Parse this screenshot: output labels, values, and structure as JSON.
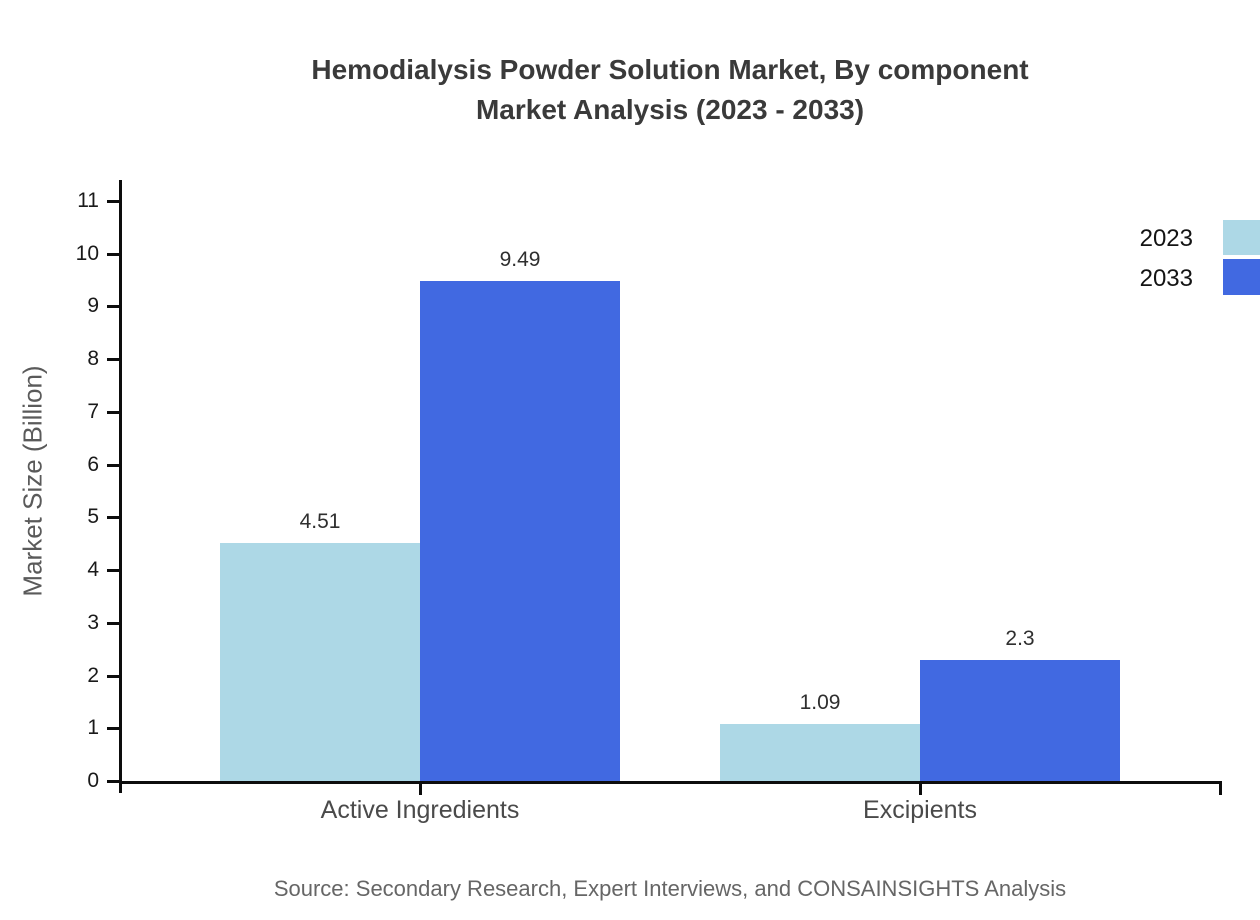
{
  "title": {
    "line1": "Hemodialysis Powder Solution Market, By component",
    "line2": "Market Analysis (2023 - 2033)"
  },
  "source_text": "Source: Secondary Research, Expert Interviews, and CONSAINSIGHTS Analysis",
  "colors": {
    "series_2023": "#ADD8E6",
    "series_2033": "#4169E1",
    "axis": "#0d0d0d",
    "title_text": "#3a3a3a",
    "source_text": "#666666"
  },
  "legend": {
    "items": [
      {
        "label": "2023",
        "color": "#ADD8E6"
      },
      {
        "label": "2033",
        "color": "#4169E1"
      }
    ]
  },
  "chart_data": {
    "type": "bar",
    "categories": [
      "Active Ingredients",
      "Excipients"
    ],
    "series": [
      {
        "name": "2023",
        "color": "#ADD8E6",
        "values": [
          4.51,
          1.09
        ],
        "labels": [
          "4.51",
          "1.09"
        ]
      },
      {
        "name": "2033",
        "color": "#4169E1",
        "values": [
          9.49,
          2.3
        ],
        "labels": [
          "9.49",
          "2.3"
        ]
      }
    ],
    "title": "Hemodialysis Powder Solution Market, By component Market Analysis (2023 - 2033)",
    "xlabel": "",
    "ylabel": "Market Size (Billion)",
    "ylim": [
      0,
      11
    ],
    "yticks": [
      0,
      1,
      2,
      3,
      4,
      5,
      6,
      7,
      8,
      9,
      10,
      11
    ],
    "grid": false,
    "legend_position": "top-right"
  }
}
